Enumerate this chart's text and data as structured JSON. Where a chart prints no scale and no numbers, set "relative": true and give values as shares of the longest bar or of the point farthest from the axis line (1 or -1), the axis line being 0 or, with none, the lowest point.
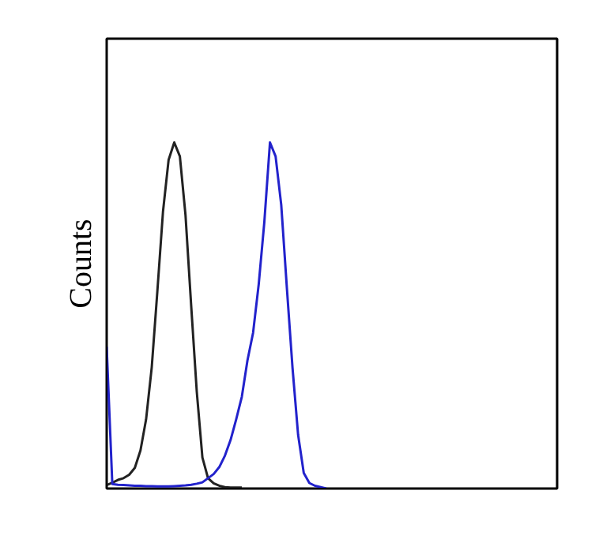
{
  "chart_data": {
    "type": "line",
    "ylabel": "Counts",
    "relative": true,
    "categories": [
      null,
      null,
      null,
      null,
      null,
      null,
      null,
      null,
      null,
      null,
      null,
      null,
      null,
      null,
      null,
      null,
      null,
      null,
      null,
      null,
      null,
      null,
      null,
      null,
      null,
      null,
      null,
      null,
      null,
      null,
      null,
      null,
      null,
      null,
      null,
      null,
      null,
      null,
      null,
      null,
      null,
      null,
      null,
      null,
      null,
      null,
      null,
      null,
      null,
      null,
      null,
      null,
      null,
      null,
      null,
      null,
      null,
      null,
      null,
      null,
      null,
      null,
      null,
      null,
      null,
      null,
      null,
      null,
      null,
      null,
      null,
      null,
      null,
      null,
      null,
      null,
      null,
      null,
      null,
      null
    ],
    "series": [
      {
        "color": "#222222",
        "values": [
          0.01,
          0.017,
          0.025,
          0.03,
          0.04,
          0.06,
          0.11,
          0.2,
          0.35,
          0.57,
          0.8,
          0.95,
          1,
          0.96,
          0.79,
          0.53,
          0.28,
          0.09,
          0.03,
          0.015,
          0.008,
          0.004,
          0.003,
          0.003,
          0.003,
          null,
          null,
          null,
          null,
          null,
          null,
          null,
          null,
          null,
          null,
          null,
          null,
          null,
          null,
          null,
          null,
          null,
          null,
          null,
          null,
          null,
          null,
          null,
          null,
          null,
          null,
          null,
          null,
          null,
          null,
          null,
          null,
          null,
          null,
          null,
          null,
          null,
          null,
          null,
          null,
          null,
          null,
          null,
          null,
          null,
          null,
          null,
          null,
          null,
          null,
          null,
          null,
          null,
          null,
          null
        ]
      },
      {
        "color": "#2222cc",
        "values": [
          0.41,
          0.013,
          0.011,
          0.01,
          0.009,
          0.008,
          0.008,
          0.007,
          0.007,
          0.006,
          0.006,
          0.006,
          0.007,
          0.008,
          0.009,
          0.011,
          0.014,
          0.018,
          0.03,
          0.042,
          0.062,
          0.095,
          0.14,
          0.2,
          0.265,
          0.37,
          0.45,
          0.59,
          0.77,
          1,
          0.96,
          0.82,
          0.58,
          0.35,
          0.155,
          0.045,
          0.016,
          0.008,
          0.004,
          0,
          null,
          null,
          null,
          null,
          null,
          null,
          null,
          null,
          null,
          null,
          null,
          null,
          null,
          null,
          null,
          null,
          null,
          null,
          null,
          null,
          null,
          null,
          null,
          null,
          null,
          null,
          null,
          null,
          null,
          null,
          null,
          null,
          null,
          null,
          null,
          null,
          null,
          null,
          null,
          null
        ]
      }
    ]
  }
}
